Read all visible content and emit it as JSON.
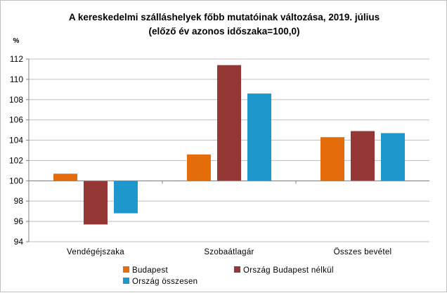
{
  "chart_data": {
    "type": "bar",
    "title_line1": "A kereskedelmi szálláshelyek főbb mutatóinak változása, 2019.  július",
    "title_line2": "(előző év azonos időszaka=100,0)",
    "ylabel": "%",
    "ylim": [
      94,
      112
    ],
    "ytick_step": 2,
    "yticks": [
      "94",
      "96",
      "98",
      "100",
      "102",
      "104",
      "106",
      "108",
      "110",
      "112"
    ],
    "baseline": 100,
    "gridlines": true,
    "legend_position": "bottom",
    "categories": [
      "Vendégéjszaka",
      "Szobaátlagár",
      "Összes bevétel"
    ],
    "series": [
      {
        "name": "Budapest",
        "color": "#E46C0A",
        "values": [
          100.7,
          102.6,
          104.3
        ]
      },
      {
        "name": "Ország Budapest nélkül",
        "color": "#953735",
        "values": [
          95.7,
          111.4,
          104.9
        ]
      },
      {
        "name": "Ország összesen",
        "color": "#1E97CC",
        "values": [
          96.8,
          108.6,
          104.7
        ]
      }
    ]
  }
}
